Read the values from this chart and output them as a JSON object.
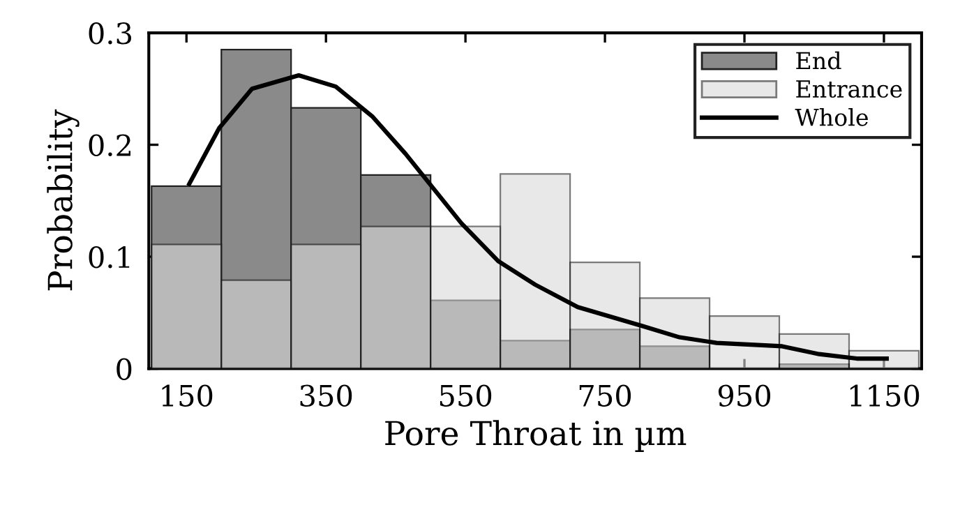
{
  "chart_data": {
    "type": "histogram",
    "xlabel": "Pore Throat in µm",
    "ylabel": "Probability",
    "bins": [
      100,
      200,
      300,
      400,
      500,
      600,
      700,
      800,
      900,
      1000,
      1100,
      1200
    ],
    "series": [
      {
        "name": "End",
        "color": "#8a8a8a",
        "values": [
          0.163,
          0.285,
          0.233,
          0.173,
          0.061,
          0.025,
          0.035,
          0.02,
          0,
          0.004,
          0
        ]
      },
      {
        "name": "Entrance",
        "color": "#d9d9d9",
        "values": [
          0.111,
          0.079,
          0.111,
          0.127,
          0.127,
          0.174,
          0.095,
          0.063,
          0.047,
          0.031,
          0.016
        ]
      },
      {
        "name": "Whole",
        "type": "line",
        "color": "#000000",
        "x": [
          154,
          197,
          244,
          311,
          364,
          417,
          464,
          504,
          544,
          597,
          650,
          711,
          804,
          857,
          910,
          1004,
          1057,
          1111,
          1154
        ],
        "values": [
          0.165,
          0.215,
          0.25,
          0.262,
          0.252,
          0.225,
          0.192,
          0.161,
          0.13,
          0.096,
          0.075,
          0.055,
          0.038,
          0.028,
          0.023,
          0.02,
          0.013,
          0.009,
          0.009
        ]
      }
    ],
    "xlim": [
      96,
      1204
    ],
    "ylim": [
      0,
      0.3
    ],
    "xticks": [
      150,
      350,
      550,
      750,
      950,
      1150
    ],
    "yticks": [
      0,
      0.1,
      0.2,
      0.3
    ],
    "legend": "top right",
    "grid": false
  }
}
